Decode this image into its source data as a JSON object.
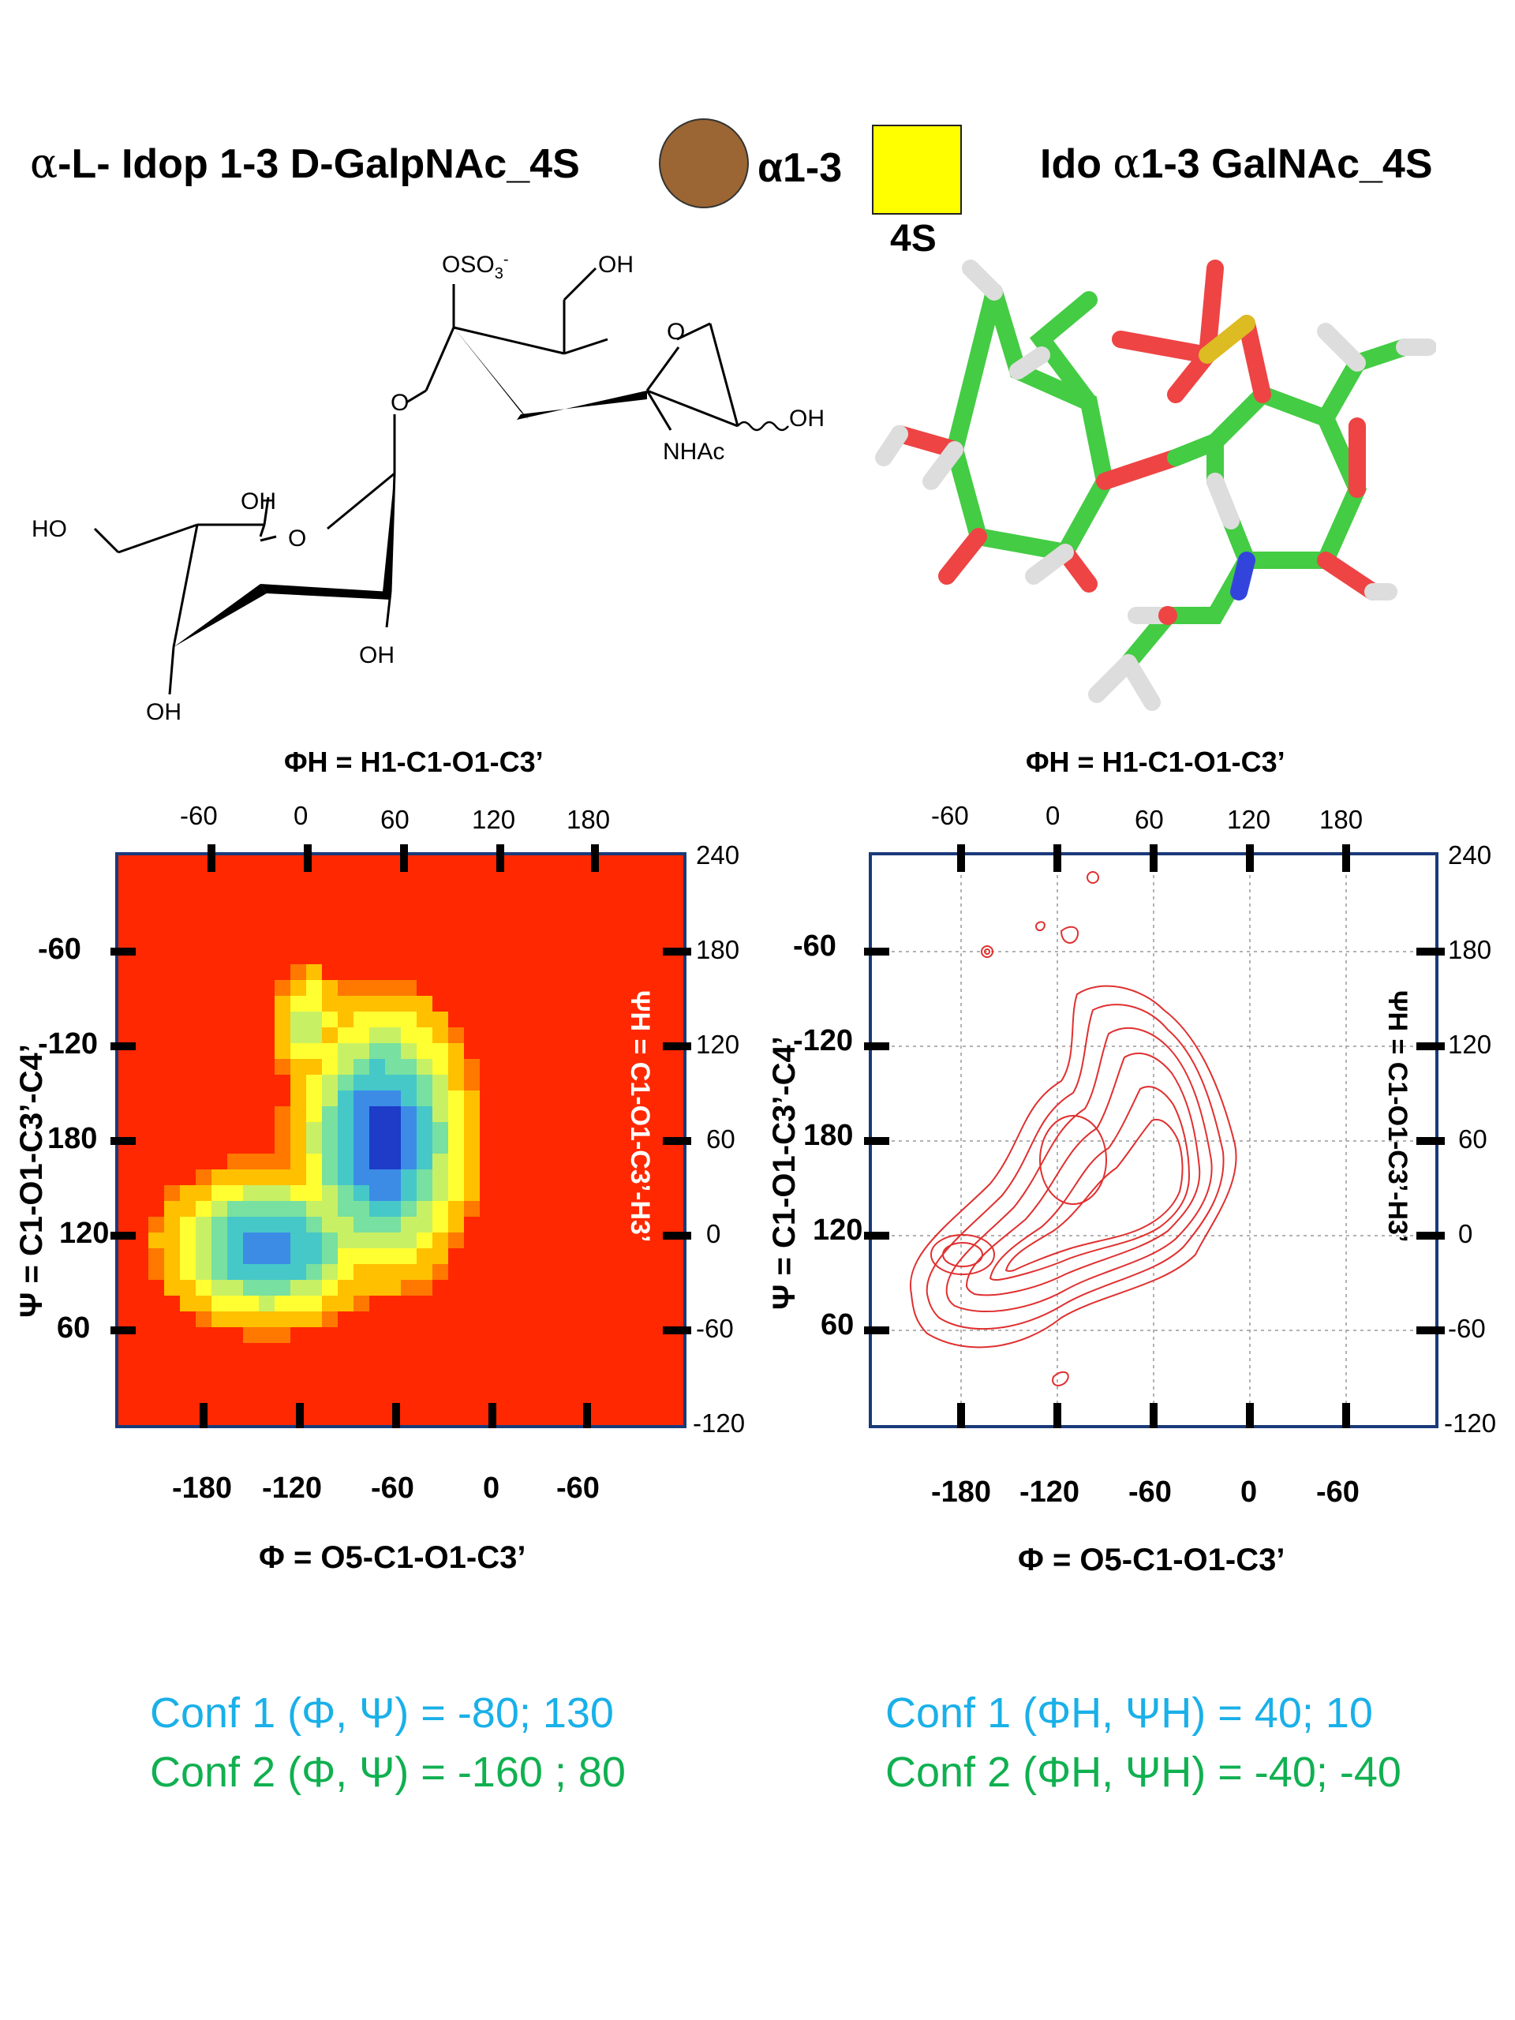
{
  "header": {
    "left_title_prefix": "α",
    "left_title_text": "-L- Idop 1-3 D-GalpNAc_4S",
    "linkage_label": "α1-3",
    "sulfate_label": "4S",
    "right_title_prefix": "Ido ",
    "right_title_glyph": "α",
    "right_title_text": "1-3 GalNAc_4S",
    "colors": {
      "ido_circle": "#9b6633",
      "galnac_square": "#ffff00"
    }
  },
  "structure": {
    "labels": [
      "OSO3-",
      "OH",
      "O",
      "O",
      "OH",
      "NHAc",
      "OH",
      "HO",
      "O",
      "OH",
      "OH",
      "OH"
    ]
  },
  "chart_data": [
    {
      "type": "heatmap",
      "title": "",
      "top_axis_label": "ΦH = H1-C1-O1-C3’",
      "bottom_axis_label": "Φ = O5-C1-O1-C3’",
      "left_axis_label": "Ψ = C1-O1-C3’-C4’",
      "right_axis_label": "ΨH = C1-O1-C3’-H3’",
      "x_ticks_bottom": [
        "-180",
        "-120",
        "-60",
        "0",
        "-60"
      ],
      "x_ticks_top": [
        "-60",
        "0",
        "60",
        "120",
        "180"
      ],
      "y_ticks_left": [
        "-60",
        "-120",
        "180",
        "120",
        "60"
      ],
      "y_ticks_right": [
        "240",
        "180",
        "120",
        "60",
        "0",
        "-60",
        "-120"
      ],
      "colormap": [
        "#1e3cc8",
        "#3c8ce6",
        "#46c8c8",
        "#78e0a0",
        "#c8f064",
        "#ffff32",
        "#ffc000",
        "#ff7800",
        "#ff2800"
      ],
      "minima": [
        {
          "name": "Conf 1",
          "phi": -80,
          "psi": 130
        },
        {
          "name": "Conf 2",
          "phi": -160,
          "psi": 80
        }
      ]
    },
    {
      "type": "contour",
      "title": "",
      "top_axis_label": "ΦH = H1-C1-O1-C3’",
      "bottom_axis_label": "Φ = O5-C1-O1-C3’",
      "left_axis_label": "Ψ = C1-O1-C3’-C4’",
      "right_axis_label": "ΨH = C1-O1-C3’-H3’",
      "x_ticks_bottom": [
        "-180",
        "-120",
        "-60",
        "0",
        "-60"
      ],
      "x_ticks_top": [
        "-60",
        "0",
        "60",
        "120",
        "180"
      ],
      "y_ticks_left": [
        "-60",
        "-120",
        "180",
        "120",
        "60"
      ],
      "y_ticks_right": [
        "240",
        "180",
        "120",
        "60",
        "0",
        "-60",
        "-120"
      ],
      "grid": true,
      "contour_color": "#e03030",
      "minima": [
        {
          "name": "Conf 1",
          "phiH": 40,
          "psiH": 10
        },
        {
          "name": "Conf 2",
          "phiH": -40,
          "psiH": -40
        }
      ]
    }
  ],
  "conformations": {
    "left_conf1": "Conf 1 (Φ, Ψ) =  -80;  130",
    "left_conf2": "Conf 2 (Φ, Ψ) =  -160 ; 80",
    "right_conf1": "Conf 1 (ΦH, ΨH) =   40; 10",
    "right_conf2": "Conf 2 (ΦH, ΨH) =  -40; -40",
    "colors": {
      "conf1": "#1ab0e8",
      "conf2": "#10b050"
    }
  }
}
